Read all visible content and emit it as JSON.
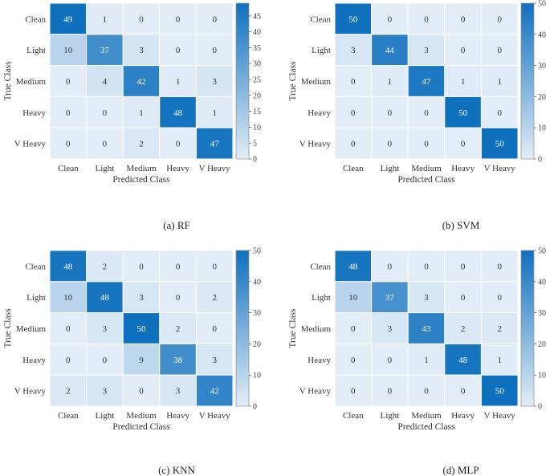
{
  "figure": {
    "panels": [
      {
        "label": "(a)  RF"
      },
      {
        "label": "(b) SVM"
      },
      {
        "label": "(c) KNN"
      },
      {
        "label": "(d) MLP"
      }
    ]
  },
  "chart_data": [
    {
      "type": "heatmap",
      "title": "RF",
      "xlabel": "Predicted Class",
      "ylabel": "True Class",
      "categories": [
        "Clean",
        "Light",
        "Medium",
        "Heavy",
        "V Heavy"
      ],
      "values": [
        [
          49,
          1,
          0,
          0,
          0
        ],
        [
          10,
          37,
          3,
          0,
          0
        ],
        [
          0,
          4,
          42,
          1,
          3
        ],
        [
          0,
          0,
          1,
          48,
          1
        ],
        [
          0,
          0,
          2,
          0,
          47
        ]
      ],
      "colorbar": {
        "min": 0,
        "max": 49,
        "ticks": [
          0,
          5,
          10,
          15,
          20,
          25,
          30,
          35,
          40,
          45
        ]
      },
      "colors": {
        "low": "#e3edf7",
        "high": "#0f70be"
      }
    },
    {
      "type": "heatmap",
      "title": "SVM",
      "xlabel": "Predicted Class",
      "ylabel": "True Class",
      "categories": [
        "Clean",
        "Light",
        "Medium",
        "Heavy",
        "V Heavy"
      ],
      "values": [
        [
          50,
          0,
          0,
          0,
          0
        ],
        [
          3,
          44,
          3,
          0,
          0
        ],
        [
          0,
          1,
          47,
          1,
          1
        ],
        [
          0,
          0,
          0,
          50,
          0
        ],
        [
          0,
          0,
          0,
          0,
          50
        ]
      ],
      "colorbar": {
        "min": 0,
        "max": 50,
        "ticks": [
          0,
          10,
          20,
          30,
          40,
          50
        ]
      },
      "colors": {
        "low": "#e3edf7",
        "high": "#0f70be"
      }
    },
    {
      "type": "heatmap",
      "title": "KNN",
      "xlabel": "Predicted Class",
      "ylabel": "True Class",
      "categories": [
        "Clean",
        "Light",
        "Medium",
        "Heavy",
        "V Heavy"
      ],
      "values": [
        [
          48,
          2,
          0,
          0,
          0
        ],
        [
          10,
          48,
          3,
          0,
          2
        ],
        [
          0,
          3,
          50,
          2,
          0
        ],
        [
          0,
          0,
          9,
          38,
          3
        ],
        [
          2,
          3,
          0,
          3,
          42
        ]
      ],
      "colorbar": {
        "min": 0,
        "max": 50,
        "ticks": [
          0,
          10,
          20,
          30,
          40,
          50
        ]
      },
      "colors": {
        "low": "#e3edf7",
        "high": "#0f70be"
      }
    },
    {
      "type": "heatmap",
      "title": "MLP",
      "xlabel": "Predicted Class",
      "ylabel": "True Class",
      "categories": [
        "Clean",
        "Light",
        "Medium",
        "Heavy",
        "V Heavy"
      ],
      "values": [
        [
          48,
          0,
          0,
          0,
          0
        ],
        [
          10,
          37,
          3,
          0,
          0
        ],
        [
          0,
          3,
          43,
          2,
          2
        ],
        [
          0,
          0,
          1,
          48,
          1
        ],
        [
          0,
          0,
          0,
          0,
          50
        ]
      ],
      "colorbar": {
        "min": 0,
        "max": 50,
        "ticks": [
          0,
          10,
          20,
          30,
          40,
          50
        ]
      },
      "colors": {
        "low": "#e3edf7",
        "high": "#0f70be"
      }
    }
  ]
}
